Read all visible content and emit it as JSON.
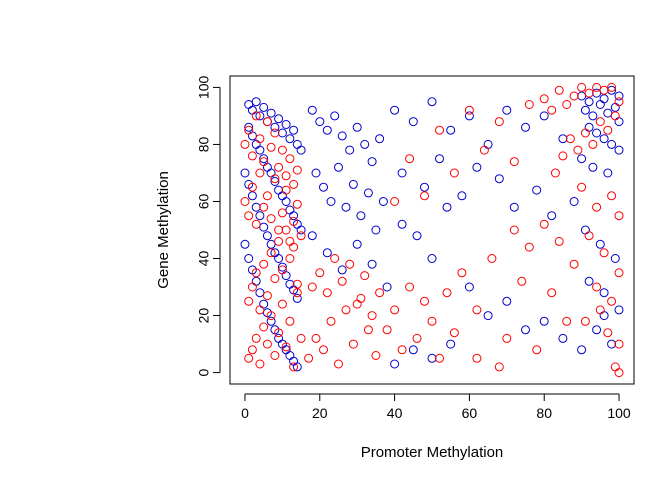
{
  "chart_data": {
    "type": "scatter",
    "title": "",
    "xlabel": "Promoter Methylation",
    "ylabel": "Gene Methylation",
    "xlim": [
      -4,
      104
    ],
    "ylim": [
      -4,
      104
    ],
    "xticks": [
      0,
      20,
      40,
      60,
      80,
      100
    ],
    "yticks": [
      0,
      20,
      40,
      60,
      80,
      100
    ],
    "grid": false,
    "marker": "open-circle",
    "series": [
      {
        "color": "#0000CD",
        "points": [
          [
            1,
            94
          ],
          [
            2,
            92
          ],
          [
            3,
            95
          ],
          [
            4,
            90
          ],
          [
            5,
            93
          ],
          [
            6,
            88
          ],
          [
            7,
            91
          ],
          [
            8,
            86
          ],
          [
            9,
            89
          ],
          [
            10,
            84
          ],
          [
            11,
            87
          ],
          [
            12,
            82
          ],
          [
            13,
            85
          ],
          [
            14,
            80
          ],
          [
            15,
            78
          ],
          [
            1,
            86
          ],
          [
            2,
            83
          ],
          [
            3,
            80
          ],
          [
            4,
            78
          ],
          [
            5,
            75
          ],
          [
            6,
            72
          ],
          [
            7,
            70
          ],
          [
            8,
            67
          ],
          [
            9,
            64
          ],
          [
            10,
            62
          ],
          [
            11,
            60
          ],
          [
            12,
            57
          ],
          [
            13,
            55
          ],
          [
            14,
            52
          ],
          [
            15,
            50
          ],
          [
            0,
            70
          ],
          [
            1,
            66
          ],
          [
            2,
            62
          ],
          [
            3,
            58
          ],
          [
            4,
            55
          ],
          [
            5,
            51
          ],
          [
            6,
            48
          ],
          [
            7,
            45
          ],
          [
            8,
            42
          ],
          [
            9,
            40
          ],
          [
            10,
            37
          ],
          [
            11,
            34
          ],
          [
            12,
            31
          ],
          [
            13,
            29
          ],
          [
            14,
            26
          ],
          [
            0,
            45
          ],
          [
            1,
            40
          ],
          [
            2,
            36
          ],
          [
            3,
            32
          ],
          [
            4,
            28
          ],
          [
            5,
            24
          ],
          [
            6,
            21
          ],
          [
            7,
            18
          ],
          [
            8,
            15
          ],
          [
            9,
            12
          ],
          [
            10,
            10
          ],
          [
            11,
            8
          ],
          [
            12,
            6
          ],
          [
            13,
            4
          ],
          [
            14,
            2
          ],
          [
            18,
            92
          ],
          [
            20,
            88
          ],
          [
            22,
            85
          ],
          [
            24,
            90
          ],
          [
            26,
            83
          ],
          [
            28,
            78
          ],
          [
            30,
            86
          ],
          [
            32,
            80
          ],
          [
            34,
            74
          ],
          [
            36,
            82
          ],
          [
            19,
            70
          ],
          [
            21,
            65
          ],
          [
            23,
            60
          ],
          [
            25,
            72
          ],
          [
            27,
            58
          ],
          [
            29,
            66
          ],
          [
            31,
            55
          ],
          [
            33,
            63
          ],
          [
            35,
            50
          ],
          [
            37,
            60
          ],
          [
            18,
            48
          ],
          [
            22,
            42
          ],
          [
            26,
            36
          ],
          [
            30,
            45
          ],
          [
            34,
            38
          ],
          [
            38,
            30
          ],
          [
            42,
            52
          ],
          [
            46,
            48
          ],
          [
            50,
            40
          ],
          [
            54,
            58
          ],
          [
            40,
            92
          ],
          [
            45,
            88
          ],
          [
            50,
            95
          ],
          [
            55,
            85
          ],
          [
            60,
            90
          ],
          [
            65,
            80
          ],
          [
            70,
            92
          ],
          [
            75,
            86
          ],
          [
            80,
            90
          ],
          [
            85,
            82
          ],
          [
            42,
            70
          ],
          [
            48,
            65
          ],
          [
            52,
            75
          ],
          [
            58,
            62
          ],
          [
            62,
            72
          ],
          [
            68,
            68
          ],
          [
            72,
            58
          ],
          [
            78,
            64
          ],
          [
            82,
            55
          ],
          [
            88,
            60
          ],
          [
            90,
            97
          ],
          [
            92,
            95
          ],
          [
            94,
            98
          ],
          [
            96,
            96
          ],
          [
            98,
            99
          ],
          [
            100,
            97
          ],
          [
            91,
            92
          ],
          [
            93,
            90
          ],
          [
            95,
            94
          ],
          [
            97,
            91
          ],
          [
            99,
            93
          ],
          [
            100,
            88
          ],
          [
            92,
            86
          ],
          [
            94,
            84
          ],
          [
            96,
            82
          ],
          [
            98,
            80
          ],
          [
            100,
            78
          ],
          [
            90,
            75
          ],
          [
            93,
            72
          ],
          [
            97,
            70
          ],
          [
            91,
            50
          ],
          [
            95,
            45
          ],
          [
            99,
            40
          ],
          [
            92,
            32
          ],
          [
            96,
            28
          ],
          [
            100,
            22
          ],
          [
            94,
            15
          ],
          [
            98,
            10
          ],
          [
            90,
            8
          ],
          [
            96,
            20
          ],
          [
            60,
            30
          ],
          [
            65,
            20
          ],
          [
            70,
            25
          ],
          [
            75,
            15
          ],
          [
            80,
            18
          ],
          [
            85,
            12
          ],
          [
            55,
            10
          ],
          [
            50,
            5
          ],
          [
            45,
            8
          ],
          [
            40,
            3
          ]
        ]
      },
      {
        "color": "#FF0000",
        "points": [
          [
            1,
            5
          ],
          [
            2,
            8
          ],
          [
            3,
            12
          ],
          [
            4,
            3
          ],
          [
            5,
            16
          ],
          [
            6,
            10
          ],
          [
            7,
            20
          ],
          [
            8,
            6
          ],
          [
            9,
            14
          ],
          [
            10,
            24
          ],
          [
            11,
            9
          ],
          [
            12,
            18
          ],
          [
            13,
            2
          ],
          [
            14,
            28
          ],
          [
            15,
            12
          ],
          [
            1,
            25
          ],
          [
            2,
            30
          ],
          [
            3,
            35
          ],
          [
            4,
            22
          ],
          [
            5,
            38
          ],
          [
            6,
            27
          ],
          [
            7,
            42
          ],
          [
            8,
            33
          ],
          [
            9,
            46
          ],
          [
            10,
            36
          ],
          [
            11,
            50
          ],
          [
            12,
            40
          ],
          [
            13,
            44
          ],
          [
            14,
            31
          ],
          [
            15,
            48
          ],
          [
            0,
            60
          ],
          [
            1,
            55
          ],
          [
            2,
            65
          ],
          [
            3,
            52
          ],
          [
            4,
            70
          ],
          [
            5,
            58
          ],
          [
            6,
            62
          ],
          [
            7,
            54
          ],
          [
            8,
            68
          ],
          [
            9,
            50
          ],
          [
            10,
            56
          ],
          [
            11,
            64
          ],
          [
            12,
            46
          ],
          [
            13,
            53
          ],
          [
            14,
            59
          ],
          [
            0,
            80
          ],
          [
            1,
            85
          ],
          [
            2,
            76
          ],
          [
            3,
            90
          ],
          [
            4,
            82
          ],
          [
            5,
            74
          ],
          [
            6,
            88
          ],
          [
            7,
            79
          ],
          [
            8,
            84
          ],
          [
            9,
            72
          ],
          [
            10,
            78
          ],
          [
            11,
            69
          ],
          [
            12,
            75
          ],
          [
            13,
            66
          ],
          [
            14,
            71
          ],
          [
            17,
            5
          ],
          [
            19,
            12
          ],
          [
            21,
            8
          ],
          [
            23,
            18
          ],
          [
            25,
            3
          ],
          [
            27,
            22
          ],
          [
            29,
            10
          ],
          [
            31,
            26
          ],
          [
            33,
            15
          ],
          [
            35,
            6
          ],
          [
            18,
            30
          ],
          [
            20,
            35
          ],
          [
            22,
            28
          ],
          [
            24,
            40
          ],
          [
            26,
            32
          ],
          [
            28,
            38
          ],
          [
            30,
            24
          ],
          [
            32,
            34
          ],
          [
            34,
            20
          ],
          [
            36,
            28
          ],
          [
            38,
            15
          ],
          [
            40,
            22
          ],
          [
            42,
            8
          ],
          [
            44,
            30
          ],
          [
            46,
            12
          ],
          [
            48,
            25
          ],
          [
            50,
            18
          ],
          [
            52,
            5
          ],
          [
            54,
            28
          ],
          [
            56,
            14
          ],
          [
            40,
            60
          ],
          [
            44,
            75
          ],
          [
            48,
            62
          ],
          [
            52,
            85
          ],
          [
            56,
            70
          ],
          [
            60,
            92
          ],
          [
            64,
            78
          ],
          [
            68,
            88
          ],
          [
            72,
            74
          ],
          [
            76,
            94
          ],
          [
            58,
            35
          ],
          [
            62,
            22
          ],
          [
            66,
            40
          ],
          [
            70,
            12
          ],
          [
            74,
            32
          ],
          [
            78,
            8
          ],
          [
            82,
            28
          ],
          [
            86,
            18
          ],
          [
            62,
            5
          ],
          [
            68,
            2
          ],
          [
            80,
            96
          ],
          [
            82,
            92
          ],
          [
            84,
            99
          ],
          [
            86,
            94
          ],
          [
            88,
            97
          ],
          [
            90,
            100
          ],
          [
            92,
            98
          ],
          [
            94,
            100
          ],
          [
            96,
            99
          ],
          [
            98,
            100
          ],
          [
            100,
            95
          ],
          [
            99,
            90
          ],
          [
            97,
            85
          ],
          [
            95,
            88
          ],
          [
            93,
            80
          ],
          [
            91,
            84
          ],
          [
            89,
            78
          ],
          [
            87,
            82
          ],
          [
            85,
            76
          ],
          [
            83,
            70
          ],
          [
            90,
            65
          ],
          [
            94,
            58
          ],
          [
            98,
            62
          ],
          [
            100,
            55
          ],
          [
            92,
            48
          ],
          [
            96,
            42
          ],
          [
            100,
            35
          ],
          [
            94,
            30
          ],
          [
            98,
            25
          ],
          [
            100,
            10
          ],
          [
            99,
            2
          ],
          [
            100,
            0
          ],
          [
            97,
            14
          ],
          [
            95,
            22
          ],
          [
            91,
            18
          ],
          [
            88,
            38
          ],
          [
            84,
            46
          ],
          [
            80,
            52
          ],
          [
            76,
            44
          ],
          [
            72,
            50
          ]
        ]
      }
    ]
  }
}
